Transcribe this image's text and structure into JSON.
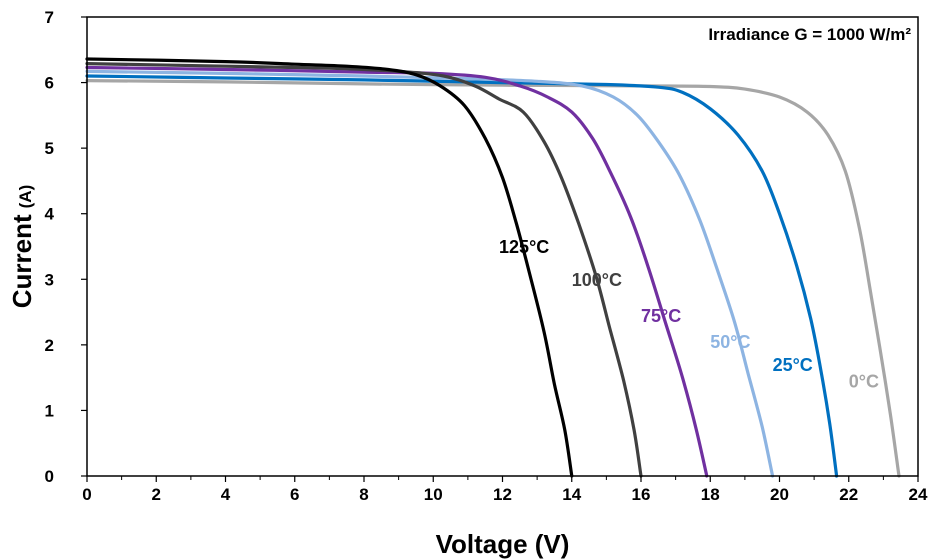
{
  "chart_data": {
    "type": "line",
    "xlabel": "Voltage (V)",
    "ylabel": "Current",
    "ylabel_unit": "(A)",
    "xlim": [
      0,
      24
    ],
    "ylim": [
      0,
      7
    ],
    "xticks": [
      0,
      2,
      4,
      6,
      8,
      10,
      12,
      14,
      16,
      18,
      20,
      22,
      24
    ],
    "yticks": [
      0,
      1,
      2,
      3,
      4,
      5,
      6,
      7
    ],
    "grid": false,
    "annotation": "Irradiance G = 1000 W/m²",
    "series": [
      {
        "name": "0°C",
        "color": "#a6a6a6",
        "points": [
          [
            0,
            6.03
          ],
          [
            4,
            6.01
          ],
          [
            8,
            5.98
          ],
          [
            12,
            5.96
          ],
          [
            16,
            5.95
          ],
          [
            18,
            5.94
          ],
          [
            19,
            5.9
          ],
          [
            20,
            5.78
          ],
          [
            20.8,
            5.55
          ],
          [
            21.4,
            5.2
          ],
          [
            21.9,
            4.65
          ],
          [
            22.3,
            3.8
          ],
          [
            22.6,
            2.9
          ],
          [
            22.9,
            1.95
          ],
          [
            23.2,
            0.95
          ],
          [
            23.45,
            0
          ]
        ]
      },
      {
        "name": "25°C",
        "color": "#0070c0",
        "points": [
          [
            0,
            6.1
          ],
          [
            4,
            6.07
          ],
          [
            8,
            6.04
          ],
          [
            12,
            6.0
          ],
          [
            15,
            5.97
          ],
          [
            16.5,
            5.93
          ],
          [
            17.2,
            5.85
          ],
          [
            18,
            5.6
          ],
          [
            18.8,
            5.2
          ],
          [
            19.5,
            4.65
          ],
          [
            20,
            4.0
          ],
          [
            20.5,
            3.2
          ],
          [
            20.9,
            2.4
          ],
          [
            21.2,
            1.6
          ],
          [
            21.45,
            0.8
          ],
          [
            21.65,
            0
          ]
        ]
      },
      {
        "name": "50°C",
        "color": "#8db4e2",
        "points": [
          [
            0,
            6.17
          ],
          [
            4,
            6.14
          ],
          [
            8,
            6.1
          ],
          [
            11,
            6.06
          ],
          [
            13,
            6.02
          ],
          [
            14.3,
            5.95
          ],
          [
            15.2,
            5.78
          ],
          [
            15.9,
            5.5
          ],
          [
            16.5,
            5.1
          ],
          [
            17.1,
            4.6
          ],
          [
            17.7,
            3.9
          ],
          [
            18.2,
            3.15
          ],
          [
            18.7,
            2.35
          ],
          [
            19.1,
            1.55
          ],
          [
            19.5,
            0.75
          ],
          [
            19.8,
            0
          ]
        ]
      },
      {
        "name": "75°C",
        "color": "#7030a0",
        "points": [
          [
            0,
            6.23
          ],
          [
            4,
            6.2
          ],
          [
            8,
            6.16
          ],
          [
            10,
            6.14
          ],
          [
            11.5,
            6.08
          ],
          [
            12.5,
            5.95
          ],
          [
            13.3,
            5.78
          ],
          [
            14,
            5.55
          ],
          [
            14.6,
            5.15
          ],
          [
            15.1,
            4.65
          ],
          [
            15.7,
            3.95
          ],
          [
            16.2,
            3.2
          ],
          [
            16.7,
            2.35
          ],
          [
            17.2,
            1.5
          ],
          [
            17.6,
            0.7
          ],
          [
            17.9,
            0
          ]
        ]
      },
      {
        "name": "100°C",
        "color": "#404040",
        "points": [
          [
            0,
            6.29
          ],
          [
            4,
            6.25
          ],
          [
            7,
            6.22
          ],
          [
            9,
            6.17
          ],
          [
            10.3,
            6.1
          ],
          [
            11.2,
            5.95
          ],
          [
            11.9,
            5.75
          ],
          [
            12.6,
            5.55
          ],
          [
            13.2,
            5.1
          ],
          [
            13.7,
            4.55
          ],
          [
            14.2,
            3.85
          ],
          [
            14.7,
            3.05
          ],
          [
            15.1,
            2.25
          ],
          [
            15.5,
            1.45
          ],
          [
            15.8,
            0.7
          ],
          [
            16.0,
            0
          ]
        ]
      },
      {
        "name": "125°C",
        "color": "#000000",
        "points": [
          [
            0,
            6.36
          ],
          [
            4,
            6.32
          ],
          [
            6,
            6.28
          ],
          [
            7.5,
            6.25
          ],
          [
            8.7,
            6.2
          ],
          [
            9.5,
            6.12
          ],
          [
            10.2,
            5.95
          ],
          [
            10.9,
            5.65
          ],
          [
            11.5,
            5.15
          ],
          [
            12,
            4.55
          ],
          [
            12.4,
            3.85
          ],
          [
            12.8,
            3.05
          ],
          [
            13.2,
            2.2
          ],
          [
            13.5,
            1.4
          ],
          [
            13.8,
            0.7
          ],
          [
            14.0,
            0
          ]
        ]
      }
    ],
    "labels": [
      {
        "text": "125°C",
        "color": "#000000",
        "x": 11.9,
        "y": 3.4
      },
      {
        "text": "100°C",
        "color": "#404040",
        "x": 14.0,
        "y": 2.9
      },
      {
        "text": "75°C",
        "color": "#7030a0",
        "x": 16.0,
        "y": 2.35
      },
      {
        "text": "50°C",
        "color": "#8db4e2",
        "x": 18.0,
        "y": 1.95
      },
      {
        "text": "25°C",
        "color": "#0070c0",
        "x": 19.8,
        "y": 1.6
      },
      {
        "text": "0°C",
        "color": "#a6a6a6",
        "x": 22.0,
        "y": 1.35
      }
    ]
  }
}
